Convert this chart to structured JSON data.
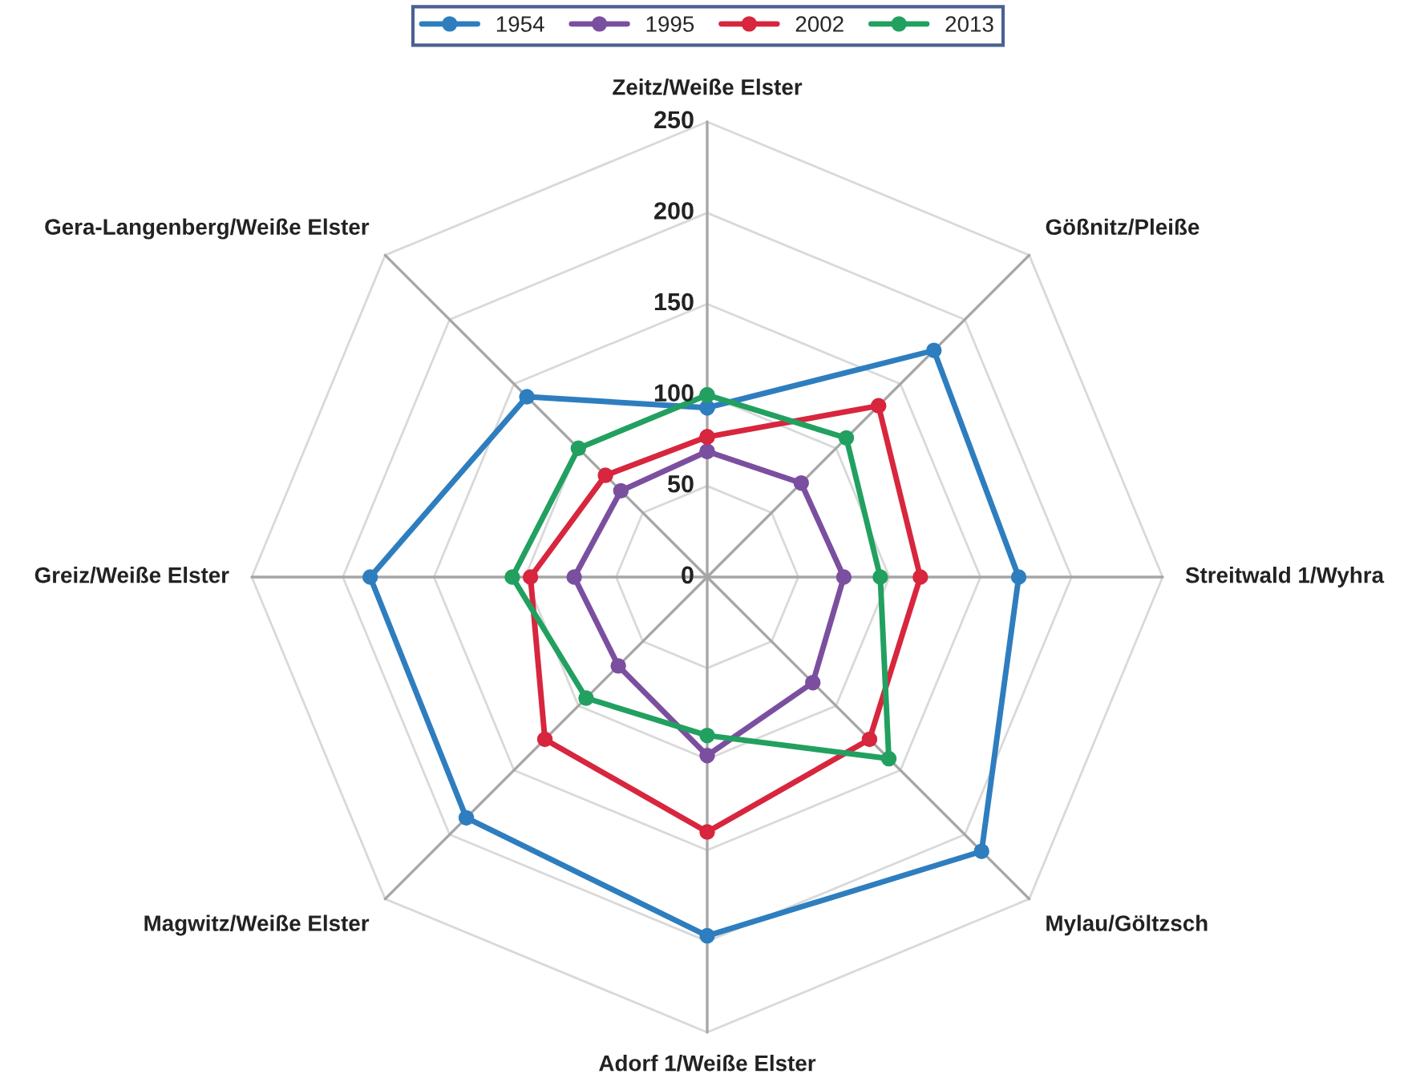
{
  "chart_data": {
    "type": "radar",
    "categories": [
      "Zeitz/Weiße Elster",
      "Gößnitz/Pleiße",
      "Streitwald 1/Wyhra",
      "Mylau/Göltzsch",
      "Adorf 1/Weiße Elster",
      "Magwitz/Weiße Elster",
      "Greiz/Weiße Elster",
      "Gera-Langenberg/Weiße Elster"
    ],
    "series": [
      {
        "name": "1954",
        "color": "#2e7ebf",
        "values": [
          93,
          176,
          171,
          213,
          197,
          187,
          185,
          140
        ]
      },
      {
        "name": "1995",
        "color": "#7b4fa0",
        "values": [
          69,
          73,
          75,
          82,
          98,
          69,
          73,
          67
        ]
      },
      {
        "name": "2002",
        "color": "#d7263d",
        "values": [
          77,
          133,
          117,
          126,
          140,
          126,
          97,
          79
        ]
      },
      {
        "name": "2013",
        "color": "#22a060",
        "values": [
          100,
          108,
          95,
          141,
          87,
          94,
          107,
          100
        ]
      }
    ],
    "ylim": [
      0,
      250
    ],
    "yticks": [
      0,
      50,
      100,
      150,
      200,
      250
    ],
    "marker": "circle",
    "legend": "top",
    "grid": true
  }
}
